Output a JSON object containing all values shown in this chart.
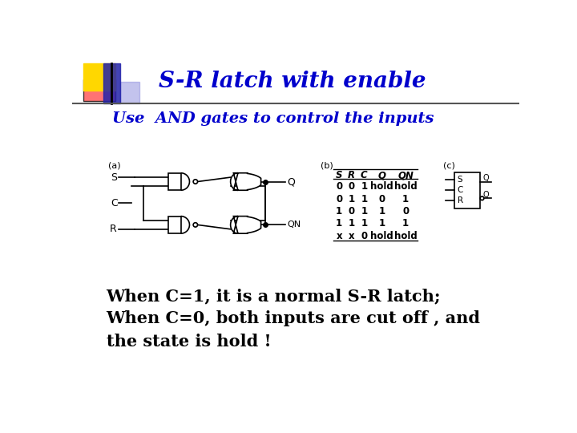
{
  "title": "S-R latch with enable",
  "subtitle": "Use  AND gates to control the inputs",
  "line1": "When C=1, it is a normal S-R latch;",
  "line2": "When C=0, both inputs are cut off , and",
  "line3": "the state is hold !",
  "title_color": "#0000CC",
  "subtitle_color": "#0000CC",
  "body_color": "#000000",
  "bg_color": "#FFFFFF",
  "table_headers": [
    "S",
    "R",
    "C",
    "Q",
    "QN"
  ],
  "table_rows": [
    [
      "0",
      "0",
      "1",
      "hold",
      "hold"
    ],
    [
      "0",
      "1",
      "1",
      "0",
      "1"
    ],
    [
      "1",
      "0",
      "1",
      "1",
      "0"
    ],
    [
      "1",
      "1",
      "1",
      "1",
      "1"
    ],
    [
      "x",
      "x",
      "0",
      "hold",
      "hold"
    ]
  ],
  "accent_yellow": "#FFD700",
  "accent_red": "#FF4444",
  "accent_blue_dark": "#2222AA",
  "accent_blue_light": "#8888DD",
  "header_line_color": "#555555",
  "circuit_lw": 1.2,
  "circuit_color": "#000000"
}
